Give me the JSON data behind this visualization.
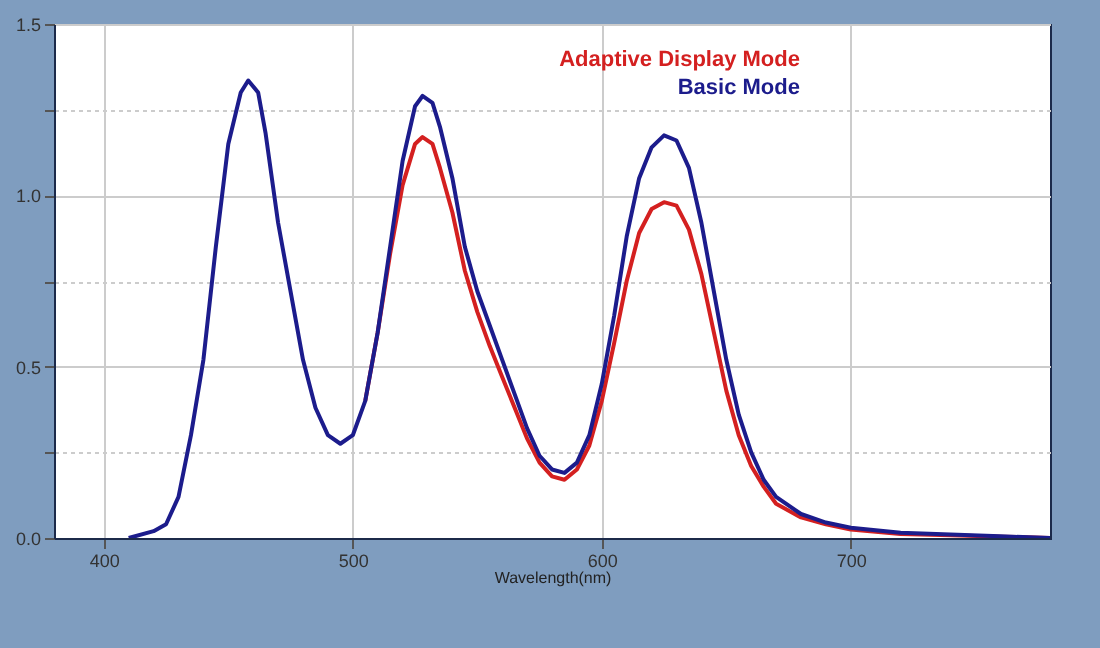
{
  "chart_data": {
    "type": "line",
    "xlabel": "Wavelength(nm)",
    "x": [
      410,
      420,
      425,
      430,
      435,
      440,
      445,
      450,
      455,
      458,
      462,
      465,
      470,
      475,
      480,
      485,
      490,
      495,
      500,
      505,
      510,
      515,
      520,
      525,
      528,
      532,
      535,
      540,
      545,
      550,
      555,
      560,
      565,
      570,
      575,
      580,
      585,
      590,
      595,
      600,
      605,
      610,
      615,
      620,
      625,
      630,
      635,
      640,
      645,
      650,
      655,
      660,
      665,
      670,
      680,
      690,
      700,
      720,
      740,
      760,
      780
    ],
    "series": [
      {
        "name": "Adaptive Display Mode",
        "color": "#d42020",
        "values": [
          null,
          null,
          null,
          null,
          null,
          null,
          null,
          null,
          null,
          null,
          null,
          null,
          null,
          null,
          null,
          null,
          null,
          null,
          null,
          0.4,
          0.6,
          0.83,
          1.03,
          1.15,
          1.17,
          1.15,
          1.08,
          0.95,
          0.78,
          0.66,
          0.56,
          0.47,
          0.38,
          0.29,
          0.22,
          0.18,
          0.17,
          0.2,
          0.27,
          0.4,
          0.57,
          0.75,
          0.89,
          0.96,
          0.98,
          0.97,
          0.9,
          0.77,
          0.6,
          0.43,
          0.3,
          0.21,
          0.15,
          0.1,
          0.06,
          0.04,
          0.025,
          0.012,
          0.008,
          0.004,
          0
        ]
      },
      {
        "name": "Basic Mode",
        "color": "#1c1c8c",
        "values": [
          0,
          0.02,
          0.04,
          0.12,
          0.3,
          0.52,
          0.85,
          1.15,
          1.3,
          1.335,
          1.3,
          1.18,
          0.92,
          0.72,
          0.52,
          0.38,
          0.3,
          0.275,
          0.3,
          0.4,
          0.6,
          0.85,
          1.1,
          1.26,
          1.29,
          1.27,
          1.2,
          1.05,
          0.85,
          0.72,
          0.62,
          0.52,
          0.42,
          0.32,
          0.24,
          0.2,
          0.19,
          0.22,
          0.3,
          0.45,
          0.65,
          0.88,
          1.05,
          1.14,
          1.175,
          1.16,
          1.08,
          0.92,
          0.72,
          0.52,
          0.36,
          0.25,
          0.17,
          0.12,
          0.07,
          0.045,
          0.03,
          0.015,
          0.01,
          0.005,
          0
        ]
      }
    ],
    "xlim": [
      380,
      780
    ],
    "xticks": [
      400,
      500,
      600,
      700
    ],
    "ylim": [
      0,
      1.5
    ],
    "yticks": [
      {
        "value": 0,
        "label": "0.0"
      },
      {
        "value": 0.25,
        "label": null
      },
      {
        "value": 0.5,
        "label": "0.5"
      },
      {
        "value": 0.75,
        "label": null
      },
      {
        "value": 1.0,
        "label": "1.0"
      },
      {
        "value": 1.25,
        "label": null
      },
      {
        "value": 1.5,
        "label": "1.5"
      }
    ],
    "grid": true,
    "legend": "top right",
    "marker": "none",
    "line_style": "solid"
  }
}
